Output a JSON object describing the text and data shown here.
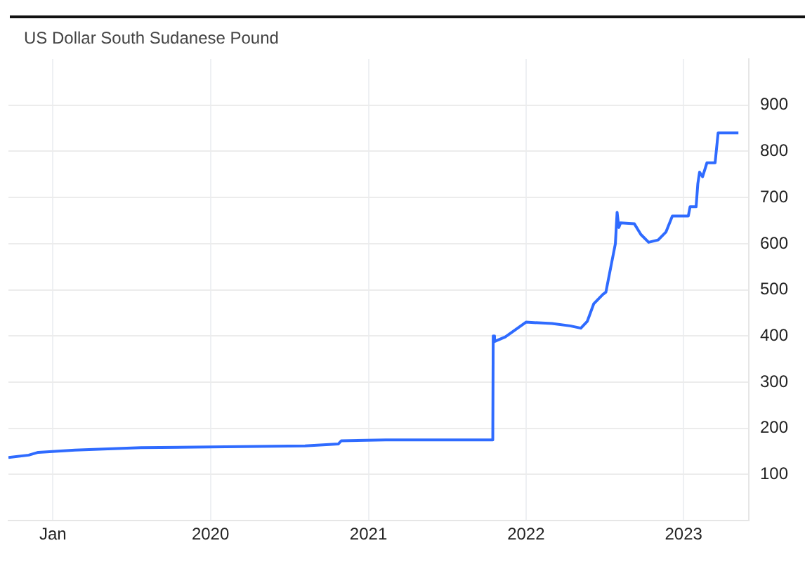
{
  "chart_data": {
    "type": "line",
    "title": "US Dollar South Sudanese Pound",
    "x": [
      "2018-09-20",
      "2018-11-06",
      "2018-11-28",
      "2019-02-21",
      "2019-07-24",
      "2020-08-07",
      "2020-10-23",
      "2020-10-30",
      "2021-02-10",
      "2021-10-16",
      "2021-10-17",
      "2021-10-20",
      "2021-11-14",
      "2022-01-01",
      "2022-03-02",
      "2022-04-13",
      "2022-05-08",
      "2022-05-23",
      "2022-06-07",
      "2022-06-28",
      "2022-07-05",
      "2022-07-27",
      "2022-07-31",
      "2022-08-04",
      "2022-08-08",
      "2022-09-09",
      "2022-09-24",
      "2022-10-12",
      "2022-11-03",
      "2022-11-21",
      "2022-12-06",
      "2023-01-12",
      "2023-01-16",
      "2023-01-30",
      "2023-02-03",
      "2023-02-07",
      "2023-02-14",
      "2023-02-24",
      "2023-03-15",
      "2023-03-22",
      "2023-05-08"
    ],
    "series": [
      {
        "color": "#2f6bff",
        "values": [
          137,
          142,
          148,
          153,
          158,
          162,
          166,
          173,
          175,
          175,
          400,
          388,
          398,
          430,
          427,
          422,
          417,
          432,
          470,
          490,
          495,
          600,
          668,
          635,
          645,
          643,
          620,
          603,
          608,
          625,
          660,
          660,
          680,
          680,
          730,
          755,
          745,
          775,
          775,
          840,
          840
        ]
      }
    ],
    "xlim": [
      "2018-09-20",
      "2023-06-01"
    ],
    "xticks": [
      {
        "value": "2019-01-01",
        "label": "Jan"
      },
      {
        "value": "2020-01-01",
        "label": "2020"
      },
      {
        "value": "2021-01-01",
        "label": "2021"
      },
      {
        "value": "2022-01-01",
        "label": "2022"
      },
      {
        "value": "2023-01-01",
        "label": "2023"
      }
    ],
    "ylim": [
      0,
      1000
    ],
    "yticks": [
      100,
      200,
      300,
      400,
      500,
      600,
      700,
      800,
      900
    ],
    "grid": true,
    "legend": false,
    "marker": "none",
    "line_style": "solid"
  }
}
